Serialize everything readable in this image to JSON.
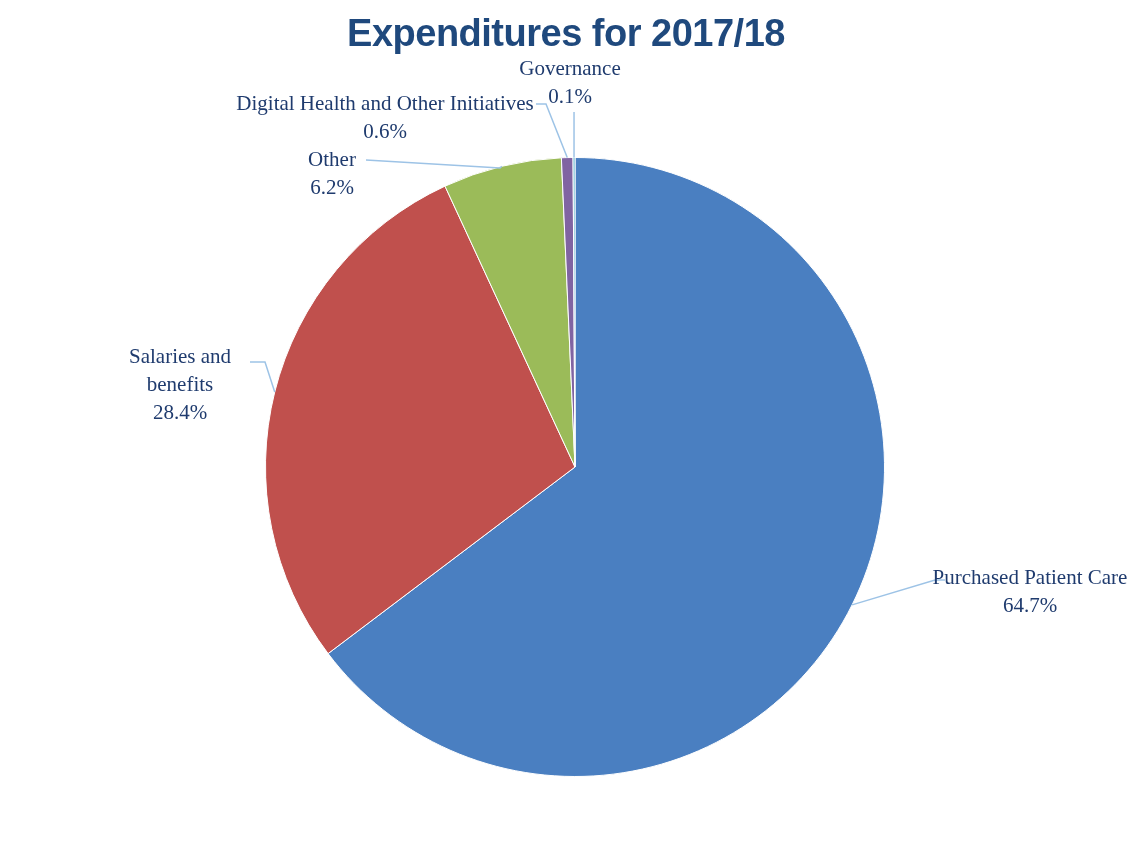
{
  "chart_data": {
    "type": "pie",
    "title": "Expenditures for 2017/18",
    "categories": [
      "Purchased Patient Care",
      "Salaries and benefits",
      "Other",
      "Digital Health and Other Initiatives",
      "Governance"
    ],
    "values": [
      64.7,
      28.4,
      6.2,
      0.6,
      0.1
    ],
    "colors": [
      "#4a7fc1",
      "#c0504d",
      "#9bbb59",
      "#8064a2",
      "#4bacc6"
    ],
    "value_labels": [
      "64.7%",
      "28.4%",
      "6.2%",
      "0.6%",
      "0.1%"
    ],
    "legend": false
  }
}
